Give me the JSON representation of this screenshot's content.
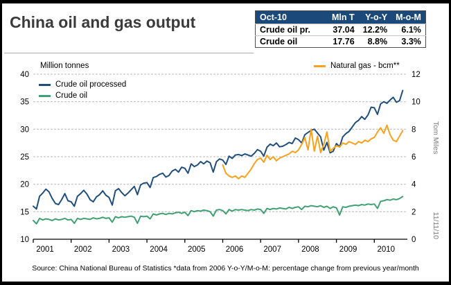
{
  "page": {
    "title": "China oil and gas output",
    "source_note": "Source: China National Bureau of Statistics  *data from 2006   Y-o-Y/M-o-M: percentage change from previous year/month",
    "byline": "Tom Miles",
    "date": "11/11/10"
  },
  "summary_table": {
    "header_bg": "#1b4a7a",
    "header": [
      "Oct-10",
      "Mln T",
      "Y-o-Y",
      "M-o-M"
    ],
    "rows": [
      [
        "Crude oil pr.",
        "37.04",
        "12.2%",
        "6.1%"
      ],
      [
        "Crude oil",
        "17.76",
        "8.8%",
        "3.3%"
      ]
    ]
  },
  "chart_data": {
    "type": "line",
    "title": "China oil and gas output",
    "grid": "horizontal-dashed",
    "x_axis": {
      "unit": "month",
      "start": "2001-01",
      "end": "2010-10",
      "tick_years": [
        2001,
        2002,
        2003,
        2004,
        2005,
        2006,
        2007,
        2008,
        2009,
        2010
      ]
    },
    "left_axis": {
      "label": "Million tonnes",
      "min": 10,
      "max": 40,
      "ticks": [
        10,
        15,
        20,
        25,
        30,
        35,
        40
      ]
    },
    "right_axis": {
      "label": "bcm",
      "min": 0,
      "max": 12,
      "ticks": [
        0,
        2,
        4,
        6,
        8,
        10,
        12
      ]
    },
    "series": [
      {
        "name": "Crude oil processed",
        "axis": "left",
        "color": "#1f4e7c",
        "start_month_index": 0,
        "values": [
          16.0,
          15.5,
          17.8,
          18.4,
          19.1,
          18.6,
          17.4,
          16.5,
          16.3,
          17.2,
          18.3,
          17.0,
          16.8,
          16.0,
          17.8,
          18.3,
          18.9,
          18.2,
          17.2,
          16.8,
          17.7,
          18.1,
          18.8,
          18.0,
          17.6,
          16.2,
          18.8,
          19.2,
          18.5,
          17.9,
          18.4,
          19.0,
          19.6,
          18.1,
          19.9,
          20.2,
          20.3,
          19.4,
          21.2,
          21.4,
          21.8,
          22.0,
          21.3,
          21.6,
          22.4,
          22.7,
          22.2,
          23.1,
          22.9,
          22.0,
          23.7,
          23.2,
          23.5,
          24.1,
          23.7,
          24.2,
          23.9,
          22.2,
          24.1,
          24.6,
          24.4,
          23.6,
          25.1,
          24.7,
          25.3,
          25.4,
          25.2,
          25.5,
          25.3,
          25.1,
          25.6,
          26.3,
          26.0,
          25.1,
          26.7,
          27.3,
          27.0,
          27.5,
          26.8,
          26.9,
          27.2,
          27.6,
          27.4,
          28.4,
          28.1,
          27.5,
          29.0,
          29.4,
          29.8,
          30.0,
          29.3,
          28.6,
          26.2,
          27.6,
          25.7,
          26.0,
          27.4,
          26.8,
          28.6,
          29.2,
          29.6,
          30.4,
          31.2,
          31.6,
          32.3,
          31.8,
          32.6,
          34.0,
          33.9,
          32.7,
          34.6,
          35.0,
          34.7,
          35.3,
          35.8,
          34.9,
          35.2,
          37.04
        ]
      },
      {
        "name": "Crude oil",
        "axis": "left",
        "color": "#3fa173",
        "start_month_index": 0,
        "values": [
          13.4,
          12.8,
          13.8,
          13.5,
          13.7,
          13.6,
          13.4,
          13.7,
          13.5,
          13.6,
          13.8,
          13.5,
          13.6,
          12.9,
          13.8,
          13.6,
          13.8,
          13.7,
          13.6,
          13.9,
          13.7,
          13.8,
          14.0,
          13.8,
          13.9,
          13.1,
          14.1,
          13.9,
          14.1,
          14.0,
          14.1,
          14.2,
          14.0,
          12.9,
          14.2,
          14.1,
          14.2,
          13.7,
          14.6,
          14.4,
          14.6,
          14.7,
          14.5,
          14.7,
          14.6,
          14.8,
          14.9,
          14.7,
          14.9,
          14.3,
          15.2,
          15.0,
          15.2,
          15.1,
          15.3,
          15.2,
          15.0,
          14.2,
          15.3,
          15.4,
          15.2,
          14.6,
          15.4,
          15.1,
          15.4,
          15.3,
          15.4,
          15.3,
          15.2,
          15.4,
          15.3,
          15.5,
          15.4,
          14.7,
          15.6,
          15.4,
          15.6,
          15.5,
          15.7,
          15.6,
          15.5,
          15.8,
          15.6,
          15.8,
          15.9,
          15.4,
          16.0,
          15.9,
          16.1,
          16.0,
          15.9,
          16.1,
          15.8,
          16.0,
          15.6,
          15.9,
          15.7,
          14.4,
          15.9,
          15.8,
          16.0,
          16.1,
          16.2,
          16.1,
          16.3,
          16.2,
          16.4,
          16.3,
          16.4,
          15.6,
          16.9,
          17.0,
          17.2,
          17.1,
          17.3,
          17.2,
          17.4,
          17.76
        ]
      },
      {
        "name": "Natural gas - bcm**",
        "axis": "right",
        "color": "#f9a11b",
        "start_month_index": 60,
        "values": [
          5.4,
          4.8,
          4.6,
          4.5,
          4.6,
          4.4,
          4.6,
          4.5,
          4.8,
          5.1,
          5.5,
          5.8,
          5.9,
          5.6,
          6.1,
          5.8,
          6.0,
          5.7,
          5.9,
          6.0,
          6.1,
          6.2,
          6.4,
          6.3,
          6.5,
          6.9,
          7.4,
          6.5,
          8.0,
          6.4,
          7.5,
          6.3,
          6.9,
          7.8,
          6.4,
          6.6,
          6.8,
          6.7,
          7.0,
          6.9,
          7.1,
          7.0,
          6.9,
          7.1,
          7.0,
          7.2,
          7.1,
          7.3,
          7.4,
          7.8,
          8.1,
          7.7,
          8.3,
          7.6,
          7.2,
          7.1,
          7.5,
          7.9
        ]
      }
    ]
  }
}
